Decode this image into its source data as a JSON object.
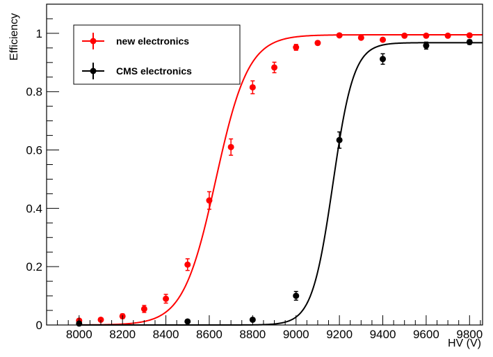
{
  "chart_data": {
    "type": "scatter",
    "xlabel": "HV (V)",
    "ylabel": "Efficiency",
    "xlim": [
      7850,
      9860
    ],
    "ylim": [
      0,
      1.1
    ],
    "x_ticks": [
      8000,
      8200,
      8400,
      8600,
      8800,
      9000,
      9200,
      9400,
      9600,
      9800
    ],
    "y_ticks": [
      0,
      0.2,
      0.4,
      0.6,
      0.8,
      1
    ],
    "y_tick_labels": [
      "0",
      "0.2",
      "0.4",
      "0.6",
      "0.8",
      "1"
    ],
    "grid": false,
    "legend_position": "top-left",
    "series": [
      {
        "name": "new electronics",
        "color": "#ff0000",
        "x": [
          8000,
          8100,
          8200,
          8300,
          8400,
          8500,
          8600,
          8700,
          8800,
          8900,
          9000,
          9100,
          9200,
          9300,
          9400,
          9500,
          9600,
          9700,
          9800
        ],
        "y": [
          0.015,
          0.018,
          0.03,
          0.055,
          0.09,
          0.207,
          0.427,
          0.61,
          0.815,
          0.883,
          0.952,
          0.967,
          0.993,
          0.985,
          0.978,
          0.992,
          0.992,
          0.992,
          0.993
        ],
        "yerr": [
          0.005,
          0.005,
          0.008,
          0.012,
          0.015,
          0.02,
          0.03,
          0.028,
          0.022,
          0.018,
          0.01,
          0.007,
          0.004,
          0.004,
          0.005,
          0.003,
          0.003,
          0.003,
          0.003
        ],
        "fit": {
          "midpoint": 8630,
          "width": 75,
          "plateau": 0.995
        }
      },
      {
        "name": "CMS electronics",
        "color": "#000000",
        "x": [
          8000,
          8500,
          8800,
          9000,
          9200,
          9400,
          9600,
          9800
        ],
        "y": [
          0.005,
          0.012,
          0.018,
          0.1,
          0.634,
          0.912,
          0.958,
          0.97
        ],
        "yerr": [
          0.003,
          0.003,
          0.005,
          0.015,
          0.028,
          0.018,
          0.012,
          0.008
        ],
        "fit": {
          "midpoint": 9170,
          "width": 48,
          "plateau": 0.968
        }
      }
    ]
  }
}
